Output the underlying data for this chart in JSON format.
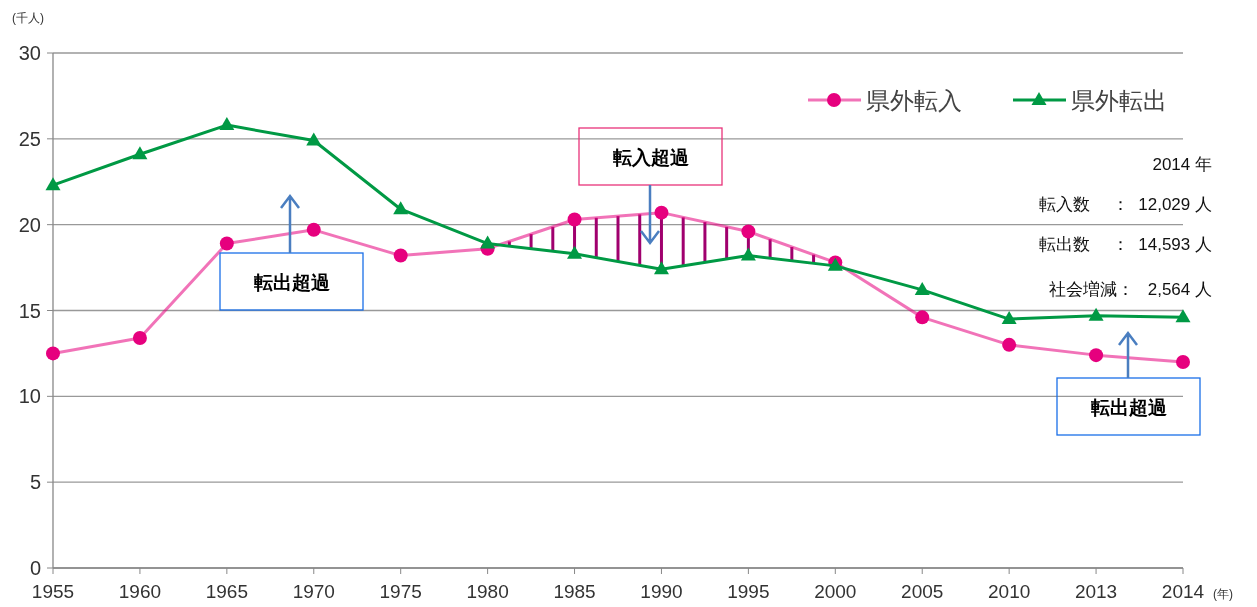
{
  "chart_data": {
    "type": "line",
    "categories": [
      "1955",
      "1960",
      "1965",
      "1970",
      "1975",
      "1980",
      "1985",
      "1990",
      "1995",
      "2000",
      "2005",
      "2010",
      "2013",
      "2014"
    ],
    "series": [
      {
        "name": "県外転入",
        "color": "#e6007e",
        "marker": "circle",
        "values": [
          12.5,
          13.4,
          18.9,
          19.7,
          18.2,
          18.6,
          20.3,
          20.7,
          19.6,
          17.8,
          14.6,
          13.0,
          12.4,
          12.0
        ]
      },
      {
        "name": "県外転出",
        "color": "#009944",
        "marker": "triangle",
        "values": [
          22.3,
          24.1,
          25.8,
          24.9,
          20.9,
          18.9,
          18.3,
          17.4,
          18.2,
          17.6,
          16.2,
          14.5,
          14.7,
          14.6
        ]
      }
    ],
    "ylim": [
      0,
      30
    ],
    "yticks": [
      0,
      5,
      10,
      15,
      20,
      25,
      30
    ],
    "ylabel": "(千人)",
    "xlabel": "(年)",
    "grid": "y",
    "legend": "top right",
    "annotations": [
      "転出超過",
      "転入超過",
      "転出超過",
      "2014 年",
      "転入数　 ：  12,029 人",
      "転出数　 ：  14,593 人",
      "社会増減：   2,564 人"
    ]
  }
}
